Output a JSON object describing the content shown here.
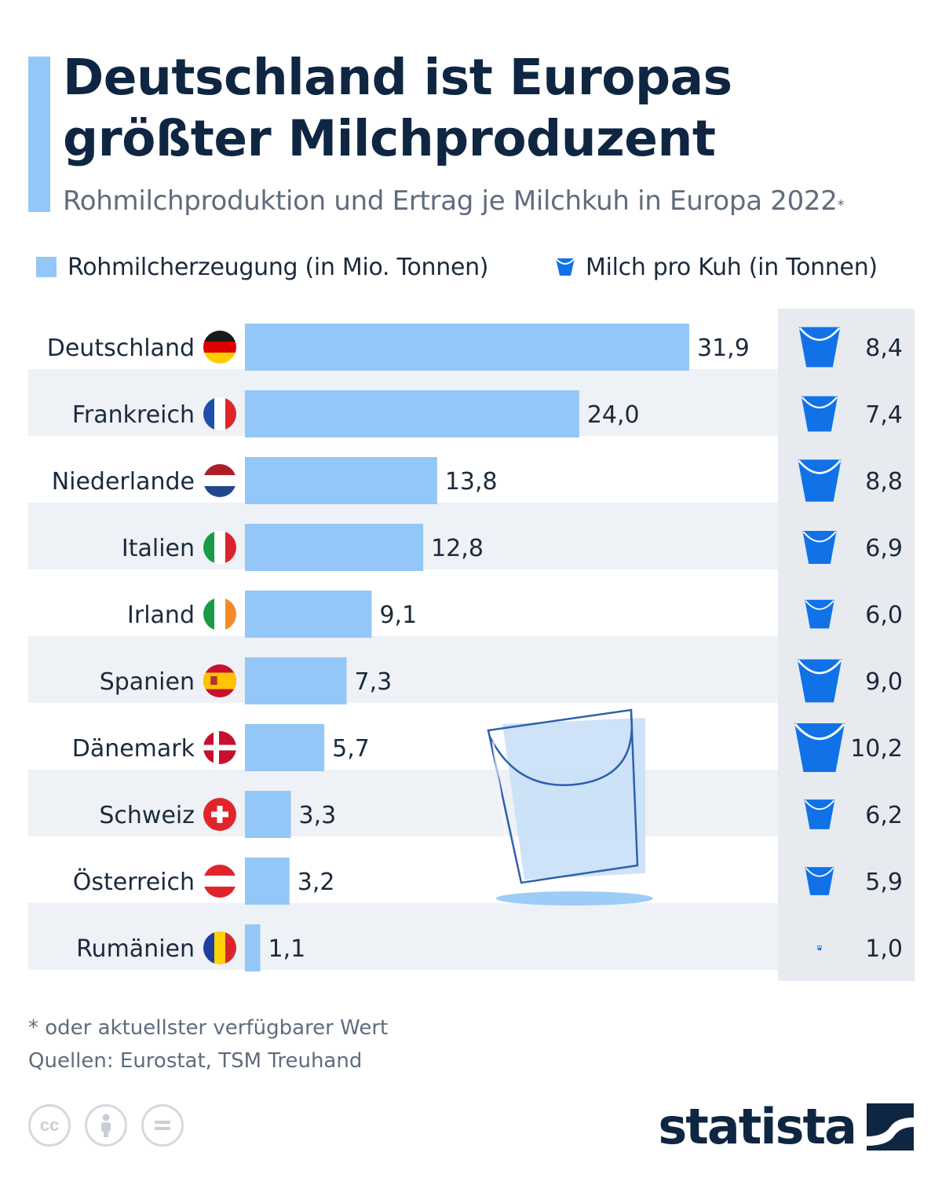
{
  "header": {
    "title_line1": "Deutschland ist Europas",
    "title_line2": "größter Milchproduzent",
    "subtitle": "Rohmilchproduktion und Ertrag je Milchkuh in Europa 2022",
    "subtitle_mark": "*"
  },
  "legend": {
    "production": "Rohmilcherzeugung (in Mio. Tonnen)",
    "per_cow": "Milch pro Kuh (in Tonnen)"
  },
  "chart_data": {
    "type": "bar",
    "orientation": "horizontal",
    "categories": [
      "Deutschland",
      "Frankreich",
      "Niederlande",
      "Italien",
      "Irland",
      "Spanien",
      "Dänemark",
      "Schweiz",
      "Österreich",
      "Rumänien"
    ],
    "series": [
      {
        "name": "Rohmilcherzeugung (in Mio. Tonnen)",
        "values": [
          31.9,
          24.0,
          13.8,
          12.8,
          9.1,
          7.3,
          5.7,
          3.3,
          3.2,
          1.1
        ],
        "labels": [
          "31,9",
          "24,0",
          "13,8",
          "12,8",
          "9,1",
          "7,3",
          "5,7",
          "3,3",
          "3,2",
          "1,1"
        ]
      },
      {
        "name": "Milch pro Kuh (in Tonnen)",
        "values": [
          8.4,
          7.4,
          8.8,
          6.9,
          6.0,
          9.0,
          10.2,
          6.2,
          5.9,
          1.0
        ],
        "labels": [
          "8,4",
          "7,4",
          "8,8",
          "6,9",
          "6,0",
          "9,0",
          "10,2",
          "6,2",
          "5,9",
          "1,0"
        ]
      }
    ],
    "flags": [
      "de",
      "fr",
      "nl",
      "it",
      "ie",
      "es",
      "dk",
      "ch",
      "at",
      "ro"
    ]
  },
  "colors": {
    "bar": "#93c7f7",
    "pail": "#1172e8",
    "title": "#0f2643",
    "row_stripe": "#eef1f5",
    "side_panel": "#e7ebf0"
  },
  "footer": {
    "note": "* oder aktuellster verfügbarer Wert",
    "sources": "Quellen: Eurostat, TSM Treuhand",
    "license_icons": [
      "cc-icon",
      "by-icon",
      "nd-icon"
    ],
    "brand": "statista"
  }
}
